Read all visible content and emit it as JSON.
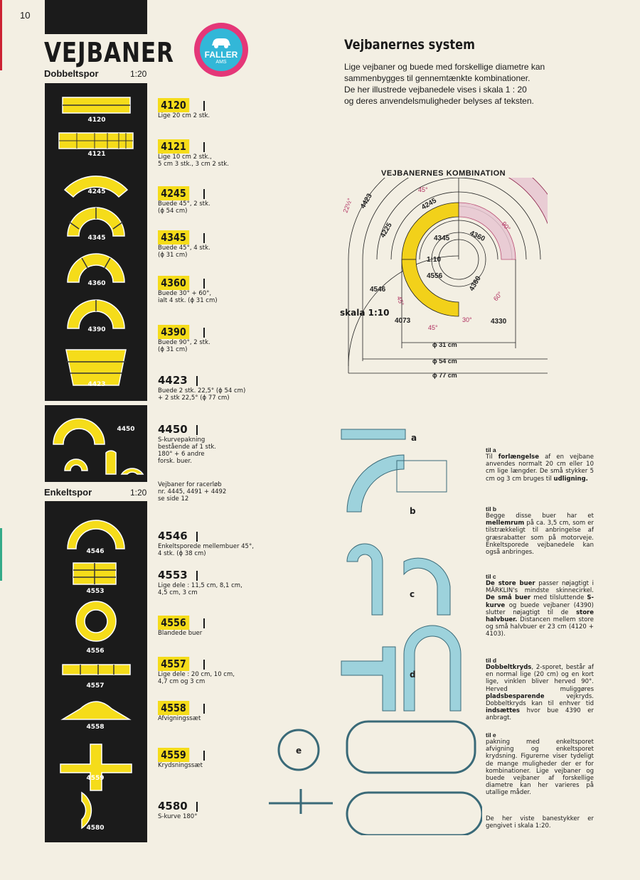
{
  "page": {
    "number": "10",
    "title": "VEJBANER",
    "double_label": "Dobbeltspor",
    "double_scale": "1:20",
    "single_label": "Enkeltspor",
    "single_scale": "1:20"
  },
  "logo": {
    "text": "FALLER",
    "sub": "AMS"
  },
  "header": {
    "heading": "Vejbanernes system",
    "intro": [
      "Lige vejbaner og buede med forskellige diametre kan",
      "sammenbygges til gennemtænkte kombinationer.",
      "De her illustrede vejbanedele vises i skala 1 : 20",
      "og deres anvendelsmuligheder belyses af teksten."
    ]
  },
  "double_items": [
    {
      "code": "4120",
      "desc": "Lige 20 cm 2 stk."
    },
    {
      "code": "4121",
      "desc": "Lige 10 cm 2 stk.,\n5 cm 3 stk., 3 cm 2 stk."
    },
    {
      "code": "4245",
      "desc": "Buede 45°, 2 stk.\n(ϕ 54 cm)"
    },
    {
      "code": "4345",
      "desc": "Buede 45°, 4 stk.\n(ϕ 31 cm)"
    },
    {
      "code": "4360",
      "desc": "Buede 30° + 60°,\nialt 4 stk. (ϕ 31 cm)"
    },
    {
      "code": "4390",
      "desc": "Buede 90°, 2 stk.\n(ϕ 31 cm)"
    },
    {
      "code": "4423",
      "desc": "Buede 2 stk. 22,5° (ϕ 54 cm)\n+ 2 stk 22,5° (ϕ 77 cm)"
    },
    {
      "code": "4450",
      "desc": "S-kurvepakning\nbestående af 1 stk.\n180° + 6 andre\nforsk. buer."
    }
  ],
  "racer_note": "Vejbaner for racerløb\nnr. 4445, 4491 + 4492\nse side 12",
  "single_items": [
    {
      "code": "4546",
      "desc": "Enkeltsporede mellembuer 45°,\n4 stk. (ϕ 38 cm)"
    },
    {
      "code": "4553",
      "desc": "Lige dele : 11,5 cm, 8,1 cm,\n4,5 cm, 3 cm"
    },
    {
      "code": "4556",
      "desc": "Blandede buer"
    },
    {
      "code": "4557",
      "desc": "Lige dele : 20 cm, 10 cm,\n4,7 cm og 3 cm"
    },
    {
      "code": "4558",
      "desc": "Afvigningssæt"
    },
    {
      "code": "4559",
      "desc": "Krydsningssæt"
    },
    {
      "code": "4580",
      "desc": "S-kurve 180°"
    }
  ],
  "piece_labels": [
    "4120",
    "4121",
    "4245",
    "4345",
    "4360",
    "4390",
    "4423",
    "4450",
    "4546",
    "4553",
    "4556",
    "4557",
    "4558",
    "4559",
    "4580"
  ],
  "combination": {
    "title": "VEJBANERNES KOMBINATION",
    "scale_label": "skala 1:10",
    "center_scale": "1:10",
    "angles": [
      "22½°",
      "45°",
      "90°",
      "45°",
      "60°",
      "45°",
      "30°"
    ],
    "pieces": [
      "4423",
      "4245",
      "4345",
      "4360",
      "4360",
      "4556",
      "4546",
      "4073",
      "4330",
      "4225"
    ],
    "diameters": [
      "ϕ 31 cm",
      "ϕ 54 cm",
      "ϕ 77 cm"
    ]
  },
  "examples": [
    {
      "letter": "a",
      "heading": "til a",
      "text": "Til <b>forlængelse</b> af en vejbane anvendes normalt 20 cm eller 10 cm lige længder. De små stykker 5 cm og 3 cm bruges til <b>udligning.</b>"
    },
    {
      "letter": "b",
      "heading": "til b",
      "text": "Begge disse buer har et <b>mellemrum</b> på ca. 3,5 cm, som er tilstrækkeligt til anbringelse af græsrabatter som på motorveje. Enkeltsporede vejbanedele kan også anbringes."
    },
    {
      "letter": "c",
      "heading": "til c",
      "text": "<b>De store buer</b> passer nøjagtigt i MÄRKLIN's mindste skinnecirkel. <b>De små buer</b> med tilsluttende <b>S-kurve</b> og buede vejbaner (4390) slutter nøjagtigt til de <b>store halvbuer.</b> Distancen mellem store og små halvbuer er 23 cm (4120 + 4103)."
    },
    {
      "letter": "d",
      "heading": "til d",
      "text": "<b>Dobbeltkryds</b>, 2-sporet, består af en normal lige (20 cm) og en kort lige, vinklen bliver herved 90°. Herved muliggøres <b>pladsbesparende</b> vejkryds. Dobbeltkryds kan til enhver tid <b>indsættes</b> hvor bue 4390 er anbragt."
    },
    {
      "letter": "e",
      "heading": "til e",
      "text": "pakning med enkeltsporet afvigning og enkeltsporet krydsning. Figurerne viser tydeligt de mange muligheder der er for kombinationer. Lige vejbaner og buede vejbaner af forskellige diametre kan her varieres på utallige måder."
    }
  ],
  "footer_note": "De her viste banestykker er gengivet i skala 1:20."
}
